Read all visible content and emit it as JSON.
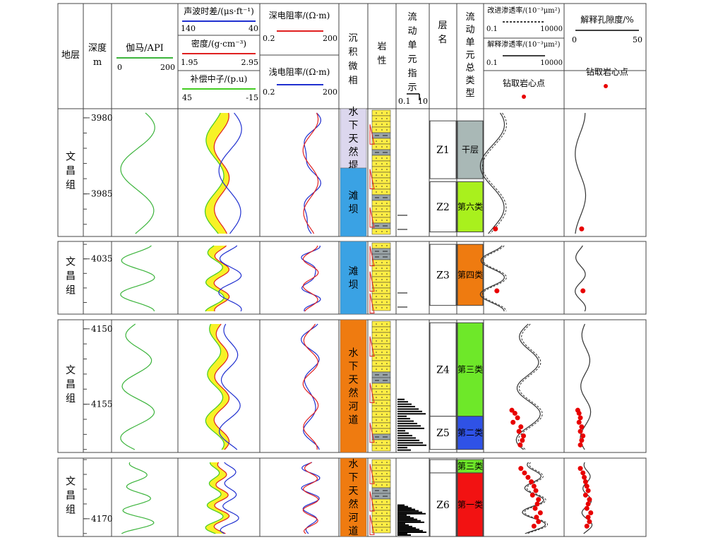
{
  "header": {
    "stratum": "地层",
    "depth": "深度",
    "depth_unit": "m",
    "gamma": {
      "label": "伽马/API",
      "min": "0",
      "max": "200",
      "color": "#3cb43c"
    },
    "sonic": {
      "label": "声波时差/(μs·ft⁻¹)",
      "min": "140",
      "max": "40",
      "color": "#2030d0"
    },
    "density": {
      "label": "密度/(g·cm⁻³)",
      "min": "1.95",
      "max": "2.95",
      "color": "#e02020"
    },
    "neutron": {
      "label": "补偿中子/(p.u)",
      "min": "45",
      "max": "-15",
      "color": "#44cc22"
    },
    "deep_res": {
      "label": "深电阻率/(Ω·m)",
      "min": "0.2",
      "max": "200",
      "color": "#e02020"
    },
    "shallow_res": {
      "label": "浅电阻率/(Ω·m)",
      "min": "0.2",
      "max": "200",
      "color": "#2030d0"
    },
    "facies": "沉积微相",
    "lithology": "岩性",
    "fzi": {
      "label": "流动单元指示",
      "min": "0.1",
      "max": "10"
    },
    "layer": "层名",
    "flow_type": "流动单元总类型",
    "perm_improved": {
      "label": "改进渗透率/(10⁻³μm²)",
      "min": "0.1",
      "max": "10000"
    },
    "perm_interp": {
      "label": "解释渗透率/(10⁻³μm²)",
      "min": "0.1",
      "max": "10000"
    },
    "core_point": "钻取岩心点",
    "porosity": {
      "label": "解释孔隙度/%",
      "min": "0",
      "max": "50"
    },
    "core_point2": "钻取岩心点"
  },
  "strata_name": "文昌组",
  "panels": [
    {
      "depth_top": 3979.4,
      "depth_bottom": 3987.8,
      "depth_labels": [
        3980,
        3985
      ],
      "facies": [
        {
          "top": 3979.4,
          "bottom": 3983.3,
          "label": "水下天然堤",
          "color": "#dcd7ee"
        },
        {
          "top": 3983.3,
          "bottom": 3987.8,
          "label": "滩坝",
          "color": "#3aa2e4"
        }
      ],
      "layers": [
        {
          "top": 3980.2,
          "bottom": 3984.0,
          "name": "Z1",
          "type": "干层",
          "color": "#a9b8b6"
        },
        {
          "top": 3984.2,
          "bottom": 3987.5,
          "name": "Z2",
          "type": "第六类",
          "color": "#a9f01d"
        }
      ],
      "core_points": [
        {
          "depth": 3987.3,
          "perm": 0.4,
          "phi": 7
        }
      ]
    },
    {
      "depth_top": 4033.8,
      "depth_bottom": 4038.8,
      "depth_labels": [
        4035
      ],
      "facies": [
        {
          "top": 4033.8,
          "bottom": 4038.8,
          "label": "滩坝",
          "color": "#3aa2e4"
        }
      ],
      "layers": [
        {
          "top": 4034.0,
          "bottom": 4038.2,
          "name": "Z3",
          "type": "第四类",
          "color": "#ef7b10"
        }
      ],
      "core_points": [
        {
          "depth": 4037.2,
          "perm": 0.5,
          "phi": 8
        }
      ]
    },
    {
      "depth_top": 4149.4,
      "depth_bottom": 4158.2,
      "depth_labels": [
        4150,
        4155
      ],
      "facies": [
        {
          "top": 4149.4,
          "bottom": 4158.2,
          "label": "水下天然河道",
          "color": "#ef7b10"
        }
      ],
      "layers": [
        {
          "top": 4149.6,
          "bottom": 4155.8,
          "name": "Z4",
          "type": "第三类",
          "color": "#6ee829"
        },
        {
          "top": 4155.8,
          "bottom": 4158.0,
          "name": "Z5",
          "type": "第二类",
          "color": "#2f52e6"
        }
      ],
      "core_points": [
        {
          "depth": 4155.4,
          "perm": 5,
          "phi": 4
        },
        {
          "depth": 4155.6,
          "perm": 8,
          "phi": 5
        },
        {
          "depth": 4155.9,
          "perm": 12,
          "phi": 6
        },
        {
          "depth": 4156.2,
          "perm": 6,
          "phi": 5
        },
        {
          "depth": 4156.5,
          "perm": 20,
          "phi": 7
        },
        {
          "depth": 4156.8,
          "perm": 15,
          "phi": 6
        },
        {
          "depth": 4157.1,
          "perm": 30,
          "phi": 8
        },
        {
          "depth": 4157.4,
          "perm": 25,
          "phi": 7
        },
        {
          "depth": 4157.7,
          "perm": 18,
          "phi": 6
        }
      ]
    },
    {
      "depth_top": 4165.9,
      "depth_bottom": 4171.2,
      "depth_labels": [
        4170
      ],
      "facies": [
        {
          "top": 4165.9,
          "bottom": 4171.2,
          "label": "水下天然河道",
          "color": "#ef7b10"
        }
      ],
      "layers": [
        {
          "top": 4166.0,
          "bottom": 4166.9,
          "name": "",
          "type": "第三类",
          "color": "#6ee829"
        },
        {
          "top": 4166.9,
          "bottom": 4171.2,
          "name": "Z6",
          "type": "第一类",
          "color": "#f21212"
        }
      ],
      "core_points": [
        {
          "depth": 4166.6,
          "perm": 20,
          "phi": 6
        },
        {
          "depth": 4166.9,
          "perm": 35,
          "phi": 8
        },
        {
          "depth": 4167.2,
          "perm": 60,
          "phi": 9
        },
        {
          "depth": 4167.5,
          "perm": 100,
          "phi": 10
        },
        {
          "depth": 4167.8,
          "perm": 150,
          "phi": 11
        },
        {
          "depth": 4168.1,
          "perm": 200,
          "phi": 12
        },
        {
          "depth": 4168.4,
          "perm": 120,
          "phi": 10
        },
        {
          "depth": 4168.7,
          "perm": 300,
          "phi": 13
        },
        {
          "depth": 4169.0,
          "perm": 250,
          "phi": 12
        },
        {
          "depth": 4169.3,
          "perm": 180,
          "phi": 11
        },
        {
          "depth": 4169.6,
          "perm": 400,
          "phi": 14
        },
        {
          "depth": 4169.9,
          "perm": 220,
          "phi": 12
        },
        {
          "depth": 4170.2,
          "perm": 300,
          "phi": 13
        },
        {
          "depth": 4170.5,
          "perm": 150,
          "phi": 11
        }
      ]
    }
  ],
  "colors": {
    "gamma": "#3cb43c",
    "sonic": "#2030d0",
    "density": "#e02020",
    "neutron": "#44cc22",
    "crossover": "#f6f000",
    "core": "#e80000",
    "lith_sand": "#ffee44",
    "lith_mud": "#9aa4a8"
  }
}
